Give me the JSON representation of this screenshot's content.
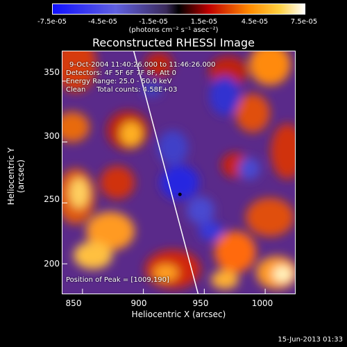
{
  "colorbar": {
    "ticks": [
      "-7.5e-05",
      "-4.5e-05",
      "-1.5e-05",
      "1.5e-05",
      "4.5e-05",
      "7.5e-05"
    ],
    "tick_values": [
      -7.5e-05,
      -4.5e-05,
      -1.5e-05,
      1.5e-05,
      4.5e-05,
      7.5e-05
    ],
    "range": [
      -7.5e-05,
      7.5e-05
    ],
    "units": "(photons cm⁻² s⁻¹ asec⁻²)"
  },
  "chart_data": {
    "type": "heatmap",
    "title": "Reconstructed RHESSI Image",
    "xlabel": "Heliocentric X (arcsec)",
    "ylabel": "Heliocentric Y (arcsec)",
    "xlim": [
      833,
      1025
    ],
    "ylim": [
      175,
      375
    ],
    "xticks": [
      850,
      900,
      950,
      1000
    ],
    "yticks": [
      200,
      250,
      300,
      350
    ],
    "peak_position": [
      1009,
      190
    ],
    "annotations": {
      "time_range": "9-Oct-2004 11:40:26.000 to 11:46:26.000",
      "detectors": "Detectors: 4F 5F 6F 7F 8F, Att 0",
      "energy": "Energy Range: 25.0 - 50.0 keV",
      "clean": "Clean     Total counts: 4.58E+03",
      "peak": "Position of Peak = [1009,190]"
    },
    "limb_line": [
      [
        892,
        375
      ],
      [
        945,
        175
      ]
    ],
    "marker": [
      930,
      257
    ]
  },
  "footer": {
    "timestamp": "15-Jun-2013 01:33"
  }
}
